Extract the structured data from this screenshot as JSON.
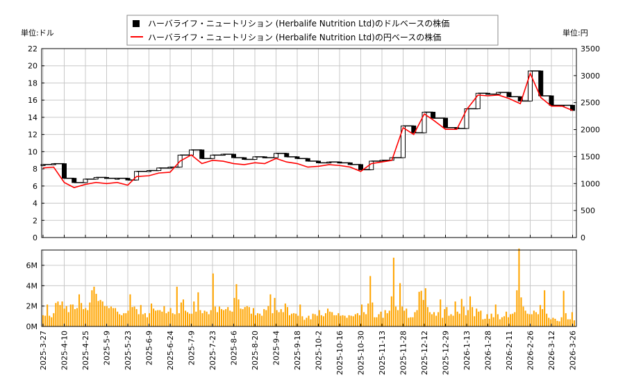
{
  "chart_data": {
    "type": "candlestick+line+bar",
    "legend": {
      "placement": "top-center",
      "entries": [
        {
          "label": "ハーバライフ・ニュートリション (Herbalife Nutrition Ltd)のドルベースの株価",
          "color": "#000000",
          "marker": "square"
        },
        {
          "label": "ハーバライフ・ニュートリション (Herbalife Nutrition Ltd)の円ベースの株価",
          "color": "#ff0000",
          "marker": "line"
        }
      ]
    },
    "left_unit_label": "単位:ドル",
    "right_unit_label": "単位:円",
    "left_axis": {
      "ylim": [
        0,
        22
      ],
      "ticks": [
        0,
        2,
        4,
        6,
        8,
        10,
        12,
        14,
        16,
        18,
        20,
        22
      ]
    },
    "right_axis": {
      "ylim": [
        0,
        3500
      ],
      "ticks": [
        0,
        500,
        1000,
        1500,
        2000,
        2500,
        3000,
        3500
      ]
    },
    "volume_axis": {
      "ylim": [
        0,
        7500000
      ],
      "ticks": [
        0,
        2000000,
        4000000,
        6000000
      ],
      "tick_labels": [
        "0M",
        "2M",
        "4M",
        "6M"
      ]
    },
    "x_tick_labels": [
      "2025-3-27",
      "2025-4-10",
      "2025-4-25",
      "2025-5-9",
      "2025-5-23",
      "2025-6-9",
      "2025-6-24",
      "2025-7-9",
      "2025-7-23",
      "2025-8-6",
      "2025-8-20",
      "2025-9-4",
      "2025-9-18",
      "2025-10-2",
      "2025-10-16",
      "2025-10-30",
      "2025-11-13",
      "2025-11-28",
      "2025-12-12",
      "2025-12-29",
      "2026-1-13",
      "2026-1-28",
      "2026-2-11",
      "2026-2-26",
      "2026-3-12",
      "2026-3-26"
    ],
    "grid": true,
    "colors": {
      "usd": "#000000",
      "jpy": "#ff0000",
      "volume": "#ffa500",
      "grid": "#c8c8c8"
    },
    "dates": [
      "2025-3-27",
      "2025-4-3",
      "2025-4-10",
      "2025-4-17",
      "2025-4-25",
      "2025-5-2",
      "2025-5-9",
      "2025-5-16",
      "2025-5-23",
      "2025-5-30",
      "2025-6-9",
      "2025-6-16",
      "2025-6-24",
      "2025-7-1",
      "2025-7-9",
      "2025-7-16",
      "2025-7-23",
      "2025-7-30",
      "2025-8-6",
      "2025-8-13",
      "2025-8-20",
      "2025-8-27",
      "2025-9-4",
      "2025-9-11",
      "2025-9-18",
      "2025-9-25",
      "2025-10-2",
      "2025-10-9",
      "2025-10-16",
      "2025-10-23",
      "2025-10-30",
      "2025-11-6",
      "2025-11-13",
      "2025-11-20",
      "2025-11-28",
      "2025-12-5",
      "2025-12-12",
      "2025-12-19",
      "2025-12-29",
      "2026-1-6",
      "2026-1-13",
      "2026-1-21",
      "2026-1-28",
      "2026-2-4",
      "2026-2-11",
      "2026-2-19",
      "2026-2-26",
      "2026-3-5",
      "2026-3-12",
      "2026-3-19",
      "2026-3-26"
    ],
    "usd": [
      8.5,
      8.6,
      6.9,
      6.4,
      6.8,
      7.0,
      6.9,
      6.9,
      6.7,
      7.7,
      7.8,
      8.1,
      8.2,
      9.6,
      10.2,
      9.2,
      9.6,
      9.7,
      9.3,
      9.1,
      9.4,
      9.3,
      9.8,
      9.4,
      9.2,
      8.9,
      8.7,
      8.8,
      8.7,
      8.5,
      7.9,
      8.9,
      9.0,
      9.3,
      13.0,
      12.2,
      14.6,
      13.9,
      12.8,
      12.7,
      15.0,
      16.8,
      16.7,
      16.9,
      16.4,
      15.9,
      19.4,
      16.5,
      15.4,
      15.4,
      14.8
    ],
    "jpy": [
      1290,
      1305,
      1020,
      925,
      985,
      1020,
      1000,
      1020,
      970,
      1130,
      1145,
      1195,
      1210,
      1415,
      1530,
      1370,
      1430,
      1415,
      1370,
      1350,
      1385,
      1370,
      1465,
      1400,
      1370,
      1305,
      1320,
      1350,
      1335,
      1305,
      1225,
      1370,
      1400,
      1430,
      2035,
      1910,
      2290,
      2180,
      2005,
      2005,
      2370,
      2640,
      2625,
      2640,
      2575,
      2480,
      3040,
      2595,
      2435,
      2435,
      2355
    ],
    "volume_millions": [
      1.1,
      1.05,
      2.15,
      1.05,
      0.9,
      1.3,
      2.3,
      2.45,
      2.1,
      2.45,
      1.75,
      2.0,
      1.4,
      2.15,
      2.15,
      1.7,
      1.8,
      3.15,
      2.3,
      1.7,
      1.8,
      1.6,
      2.35,
      3.55,
      3.9,
      3.2,
      2.5,
      2.6,
      2.45,
      2.0,
      2.0,
      1.8,
      1.95,
      1.8,
      1.8,
      1.45,
      1.2,
      1.1,
      1.3,
      1.3,
      1.55,
      3.15,
      1.9,
      1.95,
      1.7,
      1.2,
      2.1,
      1.2,
      1.3,
      0.9,
      1.3,
      2.25,
      1.75,
      1.55,
      1.6,
      1.6,
      1.45,
      2.0,
      1.3,
      1.45,
      1.8,
      1.3,
      1.2,
      3.9,
      1.3,
      2.35,
      2.65,
      1.55,
      1.4,
      1.25,
      1.25,
      2.45,
      1.45,
      3.35,
      1.6,
      1.3,
      1.55,
      1.45,
      1.2,
      1.6,
      5.2,
      1.95,
      1.4,
      1.95,
      1.7,
      1.6,
      1.7,
      1.9,
      1.55,
      1.45,
      2.8,
      4.15,
      2.65,
      1.75,
      1.7,
      1.9,
      2.0,
      1.9,
      1.25,
      1.8,
      1.1,
      1.3,
      1.25,
      1.05,
      1.7,
      1.6,
      2.0,
      3.15,
      1.3,
      2.8,
      1.6,
      1.4,
      1.7,
      1.4,
      2.25,
      1.9,
      1.1,
      1.25,
      1.3,
      1.25,
      1.05,
      2.15,
      1.0,
      0.65,
      0.85,
      1.05,
      0.7,
      1.25,
      1.2,
      1.05,
      1.6,
      1.1,
      1.0,
      1.3,
      1.75,
      1.45,
      1.4,
      1.1,
      1.1,
      1.3,
      1.05,
      1.1,
      1.05,
      0.85,
      1.1,
      1.05,
      1.0,
      1.2,
      1.3,
      1.1,
      2.15,
      1.4,
      1.2,
      2.25,
      4.95,
      2.35,
      0.9,
      0.9,
      1.2,
      1.45,
      0.85,
      1.6,
      1.3,
      1.55,
      2.95,
      6.75,
      1.95,
      1.6,
      4.25,
      1.95,
      1.55,
      1.75,
      0.85,
      0.9,
      0.9,
      1.4,
      1.6,
      3.4,
      3.5,
      2.6,
      3.75,
      1.9,
      1.4,
      1.2,
      1.4,
      1.05,
      1.4,
      2.65,
      0.85,
      1.7,
      1.9,
      1.05,
      1.2,
      1.05,
      2.45,
      1.45,
      1.25,
      2.7,
      1.95,
      1.1,
      1.6,
      2.95,
      1.9,
      1.0,
      1.75,
      1.45,
      1.55,
      0.7,
      0.75,
      1.2,
      0.75,
      1.25,
      0.9,
      2.15,
      1.2,
      0.7,
      0.9,
      1.0,
      1.45,
      0.9,
      1.2,
      1.25,
      1.4,
      3.55,
      7.65,
      2.85,
      1.95,
      1.55,
      1.25,
      1.2,
      1.2,
      1.55,
      1.4,
      1.2,
      2.1,
      1.7,
      3.55,
      1.25,
      0.85,
      0.7,
      0.85,
      0.75,
      0.55,
      0.5,
      0.9,
      3.5,
      1.3,
      0.7,
      0.7,
      1.4,
      0.6
    ]
  }
}
